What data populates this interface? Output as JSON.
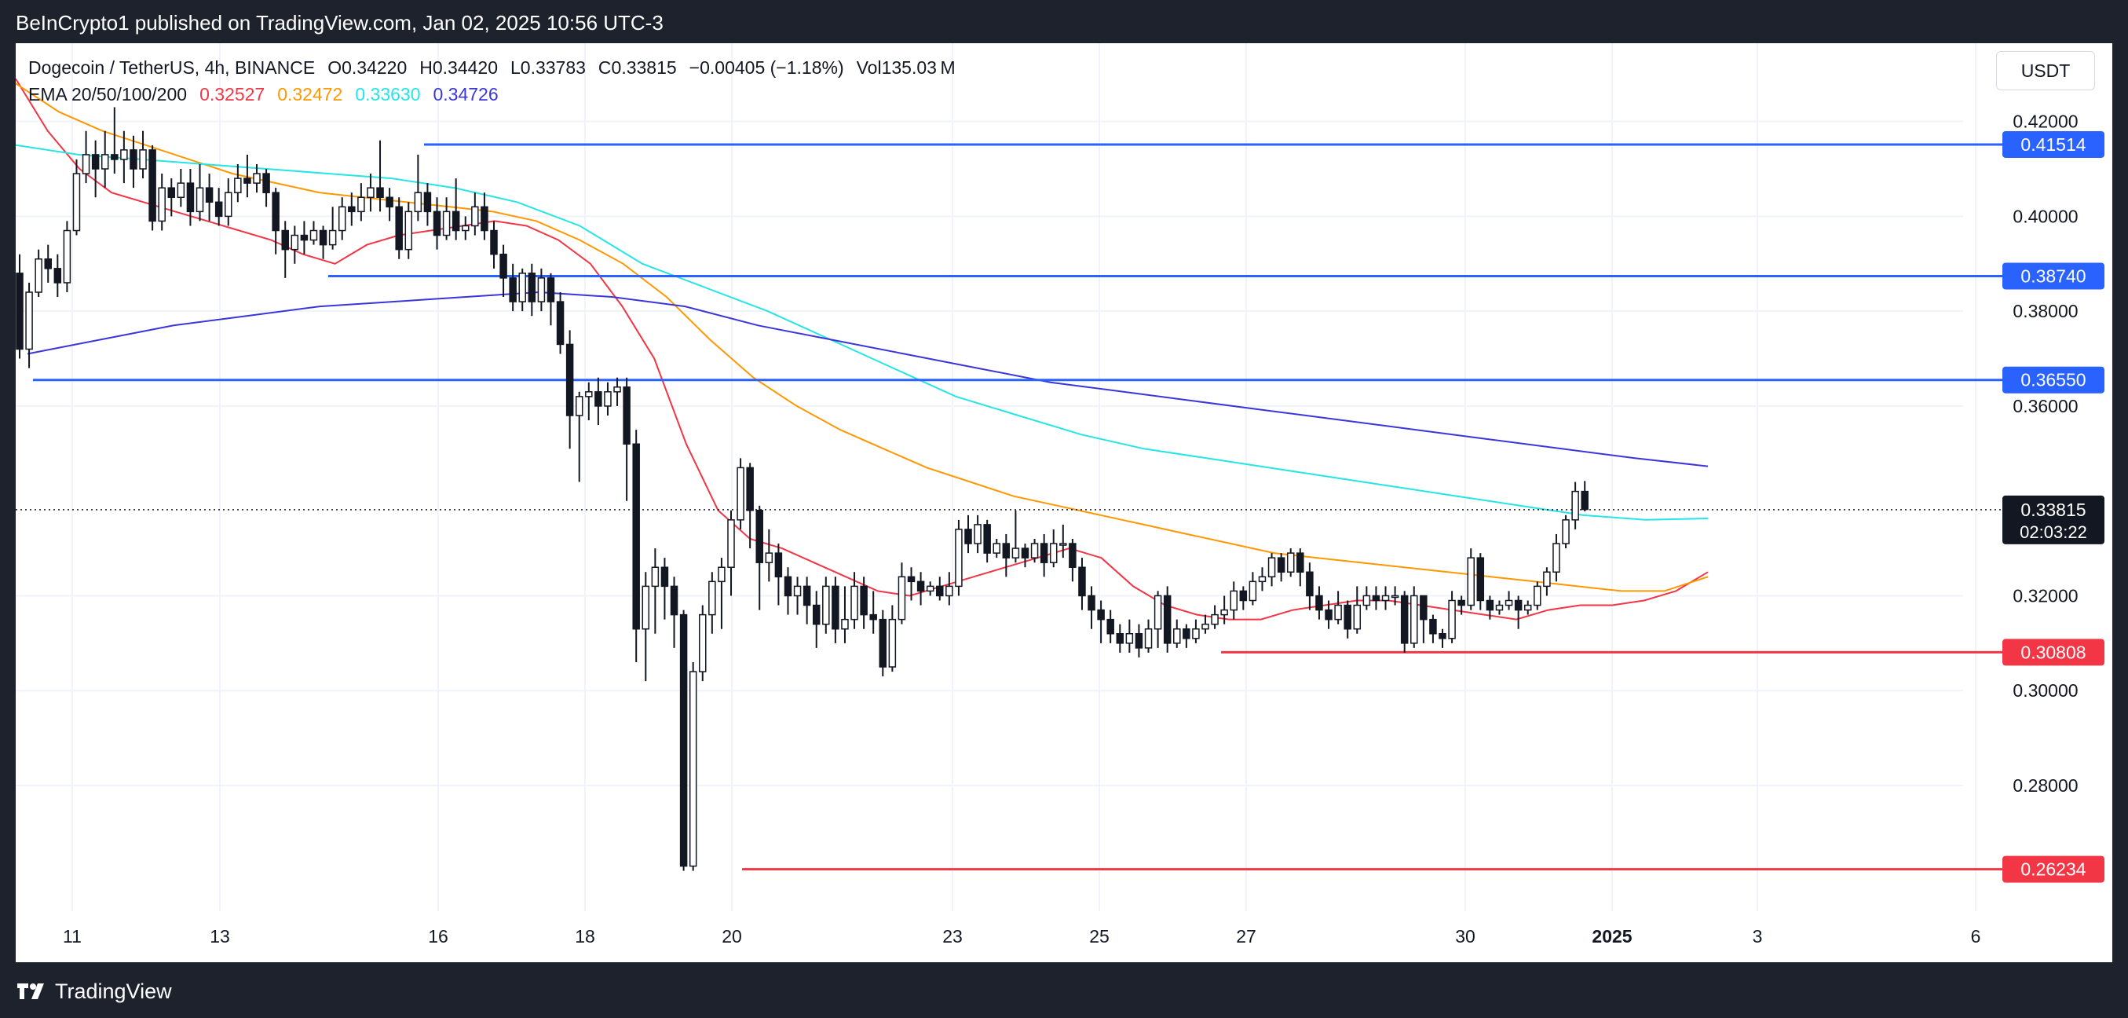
{
  "header": {
    "published": "BeInCrypto1 published on TradingView.com, Jan 02, 2025 10:56 UTC-3"
  },
  "footer": {
    "brand": "TradingView"
  },
  "symbol": {
    "title": "Dogecoin / TetherUS, 4h, BINANCE",
    "open": "O0.34220",
    "high": "H0.34420",
    "low": "L0.33783",
    "close": "C0.33815",
    "change": "−0.00405 (−1.18%)",
    "volume": "Vol135.03 M"
  },
  "ema": {
    "label": "EMA 20/50/100/200",
    "v20": "0.32527",
    "v50": "0.32472",
    "v100": "0.33630",
    "v200": "0.34726"
  },
  "currency": "USDT",
  "colors": {
    "ema20": "#f23645",
    "ema50": "#ff9800",
    "ema100": "#26e5e5",
    "ema200": "#3a36d9",
    "resistance": "#2962ff",
    "support": "#f23645",
    "price_tag": "#131722",
    "grid": "#f0f3fa"
  },
  "chart_data": {
    "type": "candlestick",
    "y_axis": {
      "range": [
        0.2535,
        0.4365
      ],
      "ticks": [
        "0.42000",
        "0.40000",
        "0.38000",
        "0.36000",
        "0.32000",
        "0.30000",
        "0.28000"
      ]
    },
    "x_axis": {
      "labels": [
        "11",
        "13",
        "16",
        "18",
        "20",
        "23",
        "25",
        "27",
        "30",
        "2025",
        "3",
        "6"
      ]
    },
    "last_price": {
      "value": "0.33815",
      "countdown": "02:03:22"
    },
    "levels": [
      {
        "value": "0.41514",
        "kind": "resistance"
      },
      {
        "value": "0.38740",
        "kind": "resistance"
      },
      {
        "value": "0.36550",
        "kind": "resistance"
      },
      {
        "value": "0.30808",
        "kind": "support"
      },
      {
        "value": "0.26234",
        "kind": "support"
      }
    ],
    "ema_series": [
      {
        "name": "EMA 20",
        "values": [
          0.429,
          0.418,
          0.41,
          0.405,
          0.403,
          0.401,
          0.399,
          0.397,
          0.395,
          0.392,
          0.39,
          0.394,
          0.396,
          0.397,
          0.398,
          0.399,
          0.398,
          0.395,
          0.39,
          0.381,
          0.37,
          0.352,
          0.338,
          0.332,
          0.33,
          0.327,
          0.324,
          0.321,
          0.32,
          0.322,
          0.324,
          0.326,
          0.328,
          0.33,
          0.328,
          0.322,
          0.318,
          0.316,
          0.315,
          0.315,
          0.317,
          0.318,
          0.319,
          0.319,
          0.318,
          0.317,
          0.316,
          0.315,
          0.317,
          0.318,
          0.318,
          0.319,
          0.321,
          0.325
        ]
      },
      {
        "name": "EMA 50",
        "values": [
          0.428,
          0.422,
          0.418,
          0.415,
          0.412,
          0.409,
          0.407,
          0.405,
          0.404,
          0.403,
          0.402,
          0.401,
          0.399,
          0.395,
          0.39,
          0.383,
          0.374,
          0.366,
          0.36,
          0.355,
          0.351,
          0.347,
          0.344,
          0.341,
          0.339,
          0.337,
          0.335,
          0.333,
          0.331,
          0.329,
          0.328,
          0.327,
          0.326,
          0.325,
          0.324,
          0.323,
          0.322,
          0.321,
          0.321,
          0.324
        ]
      },
      {
        "name": "EMA 100",
        "values": [
          0.415,
          0.413,
          0.412,
          0.411,
          0.41,
          0.409,
          0.408,
          0.406,
          0.403,
          0.398,
          0.39,
          0.385,
          0.38,
          0.374,
          0.368,
          0.362,
          0.358,
          0.354,
          0.351,
          0.349,
          0.347,
          0.345,
          0.343,
          0.341,
          0.339,
          0.337,
          0.336,
          0.3363
        ]
      },
      {
        "name": "EMA 200",
        "values": [
          0.371,
          0.374,
          0.377,
          0.379,
          0.381,
          0.382,
          0.383,
          0.384,
          0.383,
          0.381,
          0.377,
          0.374,
          0.371,
          0.368,
          0.365,
          0.363,
          0.361,
          0.359,
          0.357,
          0.355,
          0.353,
          0.351,
          0.349,
          0.3473
        ]
      }
    ],
    "candles": [
      [
        0.388,
        0.372,
        0.37,
        0.392
      ],
      [
        0.372,
        0.384,
        0.368,
        0.386
      ],
      [
        0.384,
        0.391,
        0.383,
        0.393
      ],
      [
        0.391,
        0.389,
        0.386,
        0.394
      ],
      [
        0.389,
        0.386,
        0.383,
        0.392
      ],
      [
        0.386,
        0.397,
        0.384,
        0.399
      ],
      [
        0.397,
        0.409,
        0.396,
        0.412
      ],
      [
        0.409,
        0.413,
        0.407,
        0.418
      ],
      [
        0.413,
        0.41,
        0.404,
        0.416
      ],
      [
        0.41,
        0.413,
        0.406,
        0.418
      ],
      [
        0.413,
        0.412,
        0.409,
        0.423
      ],
      [
        0.412,
        0.414,
        0.407,
        0.418
      ],
      [
        0.414,
        0.41,
        0.406,
        0.417
      ],
      [
        0.41,
        0.414,
        0.408,
        0.418
      ],
      [
        0.414,
        0.399,
        0.397,
        0.415
      ],
      [
        0.399,
        0.406,
        0.397,
        0.409
      ],
      [
        0.406,
        0.404,
        0.4,
        0.408
      ],
      [
        0.404,
        0.407,
        0.402,
        0.41
      ],
      [
        0.407,
        0.401,
        0.398,
        0.41
      ],
      [
        0.401,
        0.406,
        0.399,
        0.411
      ],
      [
        0.406,
        0.403,
        0.399,
        0.409
      ],
      [
        0.403,
        0.4,
        0.398,
        0.406
      ],
      [
        0.4,
        0.405,
        0.398,
        0.408
      ],
      [
        0.405,
        0.408,
        0.403,
        0.411
      ],
      [
        0.408,
        0.407,
        0.404,
        0.413
      ],
      [
        0.407,
        0.409,
        0.405,
        0.411
      ],
      [
        0.409,
        0.405,
        0.402,
        0.41
      ],
      [
        0.405,
        0.397,
        0.392,
        0.406
      ],
      [
        0.397,
        0.393,
        0.387,
        0.399
      ],
      [
        0.393,
        0.396,
        0.39,
        0.398
      ],
      [
        0.396,
        0.395,
        0.392,
        0.399
      ],
      [
        0.395,
        0.397,
        0.394,
        0.399
      ],
      [
        0.397,
        0.394,
        0.391,
        0.398
      ],
      [
        0.394,
        0.397,
        0.393,
        0.402
      ],
      [
        0.397,
        0.402,
        0.395,
        0.404
      ],
      [
        0.402,
        0.401,
        0.398,
        0.405
      ],
      [
        0.401,
        0.404,
        0.399,
        0.407
      ],
      [
        0.404,
        0.406,
        0.401,
        0.409
      ],
      [
        0.406,
        0.404,
        0.401,
        0.416
      ],
      [
        0.404,
        0.402,
        0.399,
        0.406
      ],
      [
        0.402,
        0.393,
        0.391,
        0.404
      ],
      [
        0.393,
        0.401,
        0.391,
        0.403
      ],
      [
        0.401,
        0.405,
        0.399,
        0.413
      ],
      [
        0.405,
        0.401,
        0.398,
        0.407
      ],
      [
        0.401,
        0.396,
        0.393,
        0.404
      ],
      [
        0.396,
        0.401,
        0.395,
        0.404
      ],
      [
        0.401,
        0.397,
        0.395,
        0.408
      ],
      [
        0.397,
        0.398,
        0.395,
        0.4
      ],
      [
        0.398,
        0.402,
        0.396,
        0.405
      ],
      [
        0.402,
        0.397,
        0.395,
        0.405
      ],
      [
        0.397,
        0.392,
        0.389,
        0.399
      ],
      [
        0.392,
        0.387,
        0.383,
        0.394
      ],
      [
        0.387,
        0.382,
        0.38,
        0.39
      ],
      [
        0.382,
        0.388,
        0.38,
        0.389
      ],
      [
        0.388,
        0.382,
        0.379,
        0.39
      ],
      [
        0.382,
        0.387,
        0.38,
        0.389
      ],
      [
        0.387,
        0.382,
        0.377,
        0.388
      ],
      [
        0.382,
        0.373,
        0.371,
        0.384
      ],
      [
        0.373,
        0.358,
        0.351,
        0.376
      ],
      [
        0.358,
        0.362,
        0.344,
        0.363
      ],
      [
        0.362,
        0.363,
        0.357,
        0.365
      ],
      [
        0.363,
        0.36,
        0.356,
        0.366
      ],
      [
        0.36,
        0.363,
        0.358,
        0.365
      ],
      [
        0.363,
        0.364,
        0.36,
        0.366
      ],
      [
        0.364,
        0.352,
        0.34,
        0.366
      ],
      [
        0.352,
        0.313,
        0.306,
        0.355
      ],
      [
        0.313,
        0.322,
        0.302,
        0.325
      ],
      [
        0.322,
        0.326,
        0.312,
        0.33
      ],
      [
        0.326,
        0.322,
        0.315,
        0.328
      ],
      [
        0.322,
        0.316,
        0.309,
        0.324
      ],
      [
        0.316,
        0.263,
        0.262,
        0.317
      ],
      [
        0.263,
        0.304,
        0.262,
        0.306
      ],
      [
        0.304,
        0.316,
        0.302,
        0.318
      ],
      [
        0.316,
        0.323,
        0.312,
        0.325
      ],
      [
        0.323,
        0.326,
        0.313,
        0.328
      ],
      [
        0.326,
        0.336,
        0.32,
        0.338
      ],
      [
        0.336,
        0.347,
        0.334,
        0.349
      ],
      [
        0.347,
        0.338,
        0.33,
        0.348
      ],
      [
        0.338,
        0.327,
        0.317,
        0.339
      ],
      [
        0.327,
        0.329,
        0.323,
        0.334
      ],
      [
        0.329,
        0.324,
        0.318,
        0.331
      ],
      [
        0.324,
        0.32,
        0.316,
        0.326
      ],
      [
        0.32,
        0.322,
        0.316,
        0.324
      ],
      [
        0.322,
        0.318,
        0.314,
        0.324
      ],
      [
        0.318,
        0.314,
        0.309,
        0.321
      ],
      [
        0.314,
        0.322,
        0.312,
        0.324
      ],
      [
        0.322,
        0.313,
        0.31,
        0.324
      ],
      [
        0.313,
        0.315,
        0.31,
        0.322
      ],
      [
        0.315,
        0.322,
        0.313,
        0.325
      ],
      [
        0.322,
        0.316,
        0.313,
        0.324
      ],
      [
        0.316,
        0.315,
        0.312,
        0.321
      ],
      [
        0.315,
        0.305,
        0.303,
        0.317
      ],
      [
        0.305,
        0.315,
        0.304,
        0.318
      ],
      [
        0.315,
        0.324,
        0.314,
        0.327
      ],
      [
        0.324,
        0.323,
        0.319,
        0.326
      ],
      [
        0.323,
        0.321,
        0.318,
        0.325
      ],
      [
        0.321,
        0.322,
        0.32,
        0.323
      ],
      [
        0.322,
        0.32,
        0.319,
        0.324
      ],
      [
        0.32,
        0.322,
        0.318,
        0.325
      ],
      [
        0.322,
        0.334,
        0.32,
        0.336
      ],
      [
        0.334,
        0.331,
        0.329,
        0.337
      ],
      [
        0.331,
        0.335,
        0.329,
        0.337
      ],
      [
        0.335,
        0.329,
        0.327,
        0.336
      ],
      [
        0.329,
        0.331,
        0.328,
        0.332
      ],
      [
        0.331,
        0.328,
        0.324,
        0.333
      ],
      [
        0.328,
        0.33,
        0.327,
        0.338
      ],
      [
        0.33,
        0.328,
        0.326,
        0.331
      ],
      [
        0.328,
        0.331,
        0.327,
        0.332
      ],
      [
        0.331,
        0.327,
        0.324,
        0.333
      ],
      [
        0.327,
        0.331,
        0.326,
        0.334
      ],
      [
        0.331,
        0.331,
        0.328,
        0.335
      ],
      [
        0.331,
        0.326,
        0.323,
        0.332
      ],
      [
        0.326,
        0.32,
        0.317,
        0.328
      ],
      [
        0.32,
        0.317,
        0.313,
        0.322
      ],
      [
        0.317,
        0.315,
        0.31,
        0.319
      ],
      [
        0.315,
        0.312,
        0.31,
        0.317
      ],
      [
        0.312,
        0.31,
        0.308,
        0.314
      ],
      [
        0.31,
        0.312,
        0.308,
        0.315
      ],
      [
        0.312,
        0.309,
        0.307,
        0.314
      ],
      [
        0.309,
        0.313,
        0.308,
        0.315
      ],
      [
        0.313,
        0.32,
        0.309,
        0.321
      ],
      [
        0.32,
        0.31,
        0.308,
        0.322
      ],
      [
        0.31,
        0.313,
        0.309,
        0.315
      ],
      [
        0.313,
        0.311,
        0.309,
        0.314
      ],
      [
        0.311,
        0.313,
        0.31,
        0.315
      ],
      [
        0.313,
        0.314,
        0.312,
        0.316
      ],
      [
        0.314,
        0.316,
        0.313,
        0.318
      ],
      [
        0.316,
        0.317,
        0.314,
        0.32
      ],
      [
        0.317,
        0.321,
        0.315,
        0.323
      ],
      [
        0.321,
        0.319,
        0.317,
        0.322
      ],
      [
        0.319,
        0.323,
        0.318,
        0.325
      ],
      [
        0.323,
        0.324,
        0.321,
        0.326
      ],
      [
        0.324,
        0.328,
        0.322,
        0.329
      ],
      [
        0.328,
        0.325,
        0.323,
        0.329
      ],
      [
        0.325,
        0.329,
        0.324,
        0.33
      ],
      [
        0.329,
        0.325,
        0.322,
        0.33
      ],
      [
        0.325,
        0.32,
        0.317,
        0.327
      ],
      [
        0.32,
        0.317,
        0.315,
        0.322
      ],
      [
        0.317,
        0.315,
        0.313,
        0.319
      ],
      [
        0.315,
        0.318,
        0.314,
        0.321
      ],
      [
        0.318,
        0.313,
        0.311,
        0.319
      ],
      [
        0.313,
        0.318,
        0.312,
        0.322
      ],
      [
        0.318,
        0.32,
        0.317,
        0.322
      ],
      [
        0.32,
        0.319,
        0.317,
        0.322
      ],
      [
        0.319,
        0.32,
        0.317,
        0.322
      ],
      [
        0.32,
        0.32,
        0.318,
        0.322
      ],
      [
        0.32,
        0.31,
        0.308,
        0.321
      ],
      [
        0.31,
        0.32,
        0.309,
        0.322
      ],
      [
        0.32,
        0.315,
        0.31,
        0.319
      ],
      [
        0.315,
        0.312,
        0.31,
        0.316
      ],
      [
        0.312,
        0.311,
        0.309,
        0.313
      ],
      [
        0.311,
        0.319,
        0.31,
        0.321
      ],
      [
        0.319,
        0.318,
        0.316,
        0.32
      ],
      [
        0.318,
        0.328,
        0.317,
        0.33
      ],
      [
        0.328,
        0.319,
        0.317,
        0.329
      ],
      [
        0.319,
        0.317,
        0.315,
        0.32
      ],
      [
        0.317,
        0.318,
        0.316,
        0.319
      ],
      [
        0.318,
        0.319,
        0.317,
        0.321
      ],
      [
        0.319,
        0.317,
        0.313,
        0.32
      ],
      [
        0.317,
        0.318,
        0.316,
        0.319
      ],
      [
        0.318,
        0.322,
        0.317,
        0.323
      ],
      [
        0.322,
        0.325,
        0.32,
        0.326
      ],
      [
        0.325,
        0.331,
        0.323,
        0.333
      ],
      [
        0.331,
        0.336,
        0.33,
        0.337
      ],
      [
        0.336,
        0.342,
        0.334,
        0.344
      ],
      [
        0.342,
        0.3382,
        0.3378,
        0.3442
      ]
    ]
  }
}
